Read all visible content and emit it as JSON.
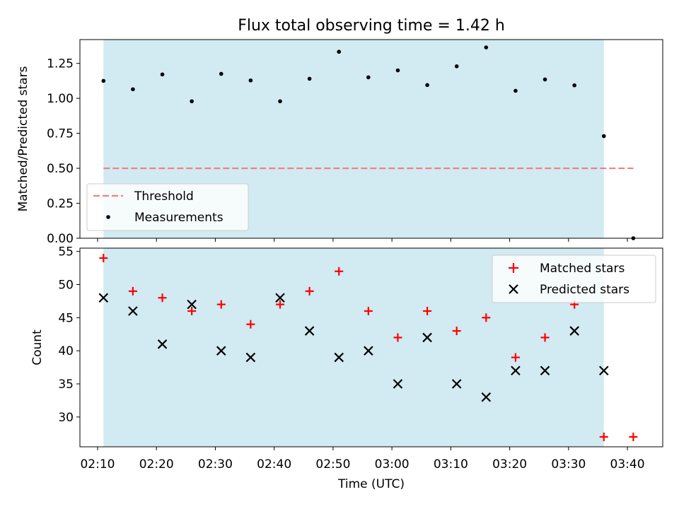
{
  "chart_data": [
    {
      "type": "scatter",
      "title": "Flux total observing time = 1.42 h",
      "xlabel": "",
      "ylabel": "Matched/Predicted stars",
      "ylim": [
        0,
        1.42
      ],
      "yticks": [
        0.0,
        0.25,
        0.5,
        0.75,
        1.0,
        1.25
      ],
      "ytick_labels": [
        "0.00",
        "0.25",
        "0.50",
        "0.75",
        "1.00",
        "1.25"
      ],
      "grid": false,
      "legend_position": "lower-left",
      "shaded_interval": [
        "02:11",
        "03:36"
      ],
      "series": [
        {
          "name": "Measurements",
          "marker": "dot",
          "color": "#000000",
          "x": [
            "02:11",
            "02:16",
            "02:21",
            "02:26",
            "02:31",
            "02:36",
            "02:41",
            "02:46",
            "02:51",
            "02:56",
            "03:01",
            "03:06",
            "03:11",
            "03:16",
            "03:21",
            "03:26",
            "03:31",
            "03:36",
            "03:41"
          ],
          "y": [
            1.125,
            1.065,
            1.171,
            0.979,
            1.175,
            1.128,
            0.979,
            1.14,
            1.333,
            1.15,
            1.2,
            1.095,
            1.229,
            1.364,
            1.054,
            1.135,
            1.093,
            0.73,
            0.0
          ]
        },
        {
          "name": "Threshold",
          "marker": "dashed-line",
          "color": "#f08080",
          "x": [
            "02:11",
            "03:41"
          ],
          "y": [
            0.5,
            0.5
          ]
        }
      ]
    },
    {
      "type": "scatter",
      "title": "",
      "xlabel": "Time (UTC)",
      "ylabel": "Count",
      "ylim": [
        25.5,
        55.5
      ],
      "yticks": [
        30,
        35,
        40,
        45,
        50,
        55
      ],
      "ytick_labels": [
        "30",
        "35",
        "40",
        "45",
        "50",
        "55"
      ],
      "x_range": [
        "02:07",
        "03:46"
      ],
      "xticks": [
        "02:10",
        "02:20",
        "02:30",
        "02:40",
        "02:50",
        "03:00",
        "03:10",
        "03:20",
        "03:30",
        "03:40"
      ],
      "grid": false,
      "legend_position": "top-right",
      "shaded_interval": [
        "02:11",
        "03:36"
      ],
      "series": [
        {
          "name": "Matched stars",
          "marker": "plus",
          "color": "#ff0000",
          "x": [
            "02:11",
            "02:16",
            "02:21",
            "02:26",
            "02:31",
            "02:36",
            "02:41",
            "02:46",
            "02:51",
            "02:56",
            "03:01",
            "03:06",
            "03:11",
            "03:16",
            "03:21",
            "03:26",
            "03:31",
            "03:36",
            "03:41"
          ],
          "y": [
            54,
            49,
            48,
            46,
            47,
            44,
            47,
            49,
            52,
            46,
            42,
            46,
            43,
            45,
            39,
            42,
            47,
            27,
            27
          ]
        },
        {
          "name": "Predicted stars",
          "marker": "x",
          "color": "#000000",
          "x": [
            "02:11",
            "02:16",
            "02:21",
            "02:26",
            "02:31",
            "02:36",
            "02:41",
            "02:46",
            "02:51",
            "02:56",
            "03:01",
            "03:06",
            "03:11",
            "03:16",
            "03:21",
            "03:26",
            "03:31",
            "03:36"
          ],
          "y": [
            48,
            46,
            41,
            47,
            40,
            39,
            48,
            43,
            39,
            40,
            35,
            42,
            35,
            33,
            37,
            37,
            43,
            37
          ]
        }
      ]
    }
  ],
  "colors": {
    "shade": "#add8e6",
    "threshold": "#f08080",
    "matched": "#ff0000",
    "predicted": "#000000"
  }
}
